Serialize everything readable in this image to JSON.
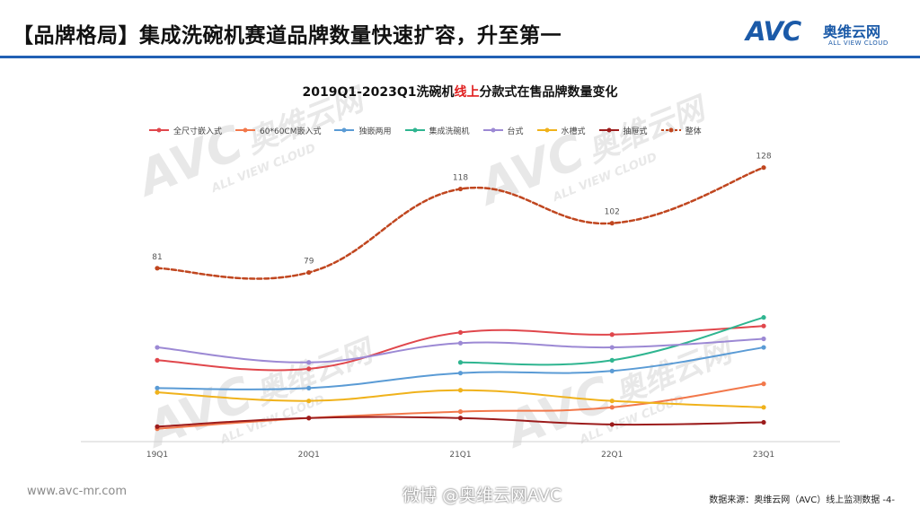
{
  "header": {
    "title": "【品牌格局】集成洗碗机赛道品牌数量快速扩容，升至第一"
  },
  "logo": {
    "mark": "AVC",
    "cn": "奥维云网",
    "en": "ALL VIEW CLOUD"
  },
  "watermark": {
    "mark": "AVC",
    "cn": "奥维云网",
    "en": "ALL VIEW CLOUD"
  },
  "chart_data": {
    "type": "line",
    "title_prefix": "2019Q1-2023Q1洗碗机",
    "title_highlight": "线上",
    "title_suffix": "分款式在售品牌数量变化",
    "title": "2019Q1-2023Q1洗碗机线上分款式在售品牌数量变化",
    "categories": [
      "19Q1",
      "20Q1",
      "21Q1",
      "22Q1",
      "23Q1"
    ],
    "ylim": [
      0,
      135
    ],
    "legend_position": "top",
    "series": [
      {
        "name": "全尺寸嵌入式",
        "color": "#e0474c",
        "dashed": false,
        "values": [
          38,
          34,
          51,
          50,
          54
        ],
        "labels": null
      },
      {
        "name": "60*60CM嵌入式",
        "color": "#f2784b",
        "dashed": false,
        "values": [
          6,
          11,
          14,
          16,
          27
        ],
        "labels": null
      },
      {
        "name": "独嵌两用",
        "color": "#5a9bd5",
        "dashed": false,
        "values": [
          25,
          25,
          32,
          33,
          44
        ],
        "labels": null
      },
      {
        "name": "集成洗碗机",
        "color": "#2fb590",
        "dashed": false,
        "values": [
          null,
          null,
          37,
          38,
          58
        ],
        "labels": null
      },
      {
        "name": "台式",
        "color": "#9c89d4",
        "dashed": false,
        "values": [
          44,
          37,
          46,
          44,
          48
        ],
        "labels": null
      },
      {
        "name": "水槽式",
        "color": "#f0b21b",
        "dashed": false,
        "values": [
          23,
          19,
          24,
          19,
          16
        ],
        "labels": null
      },
      {
        "name": "抽屉式",
        "color": "#9c1c1c",
        "dashed": false,
        "values": [
          7,
          11,
          11,
          8,
          9
        ],
        "labels": null
      },
      {
        "name": "整体",
        "color": "#c0461f",
        "dashed": true,
        "values": [
          81,
          79,
          118,
          102,
          128
        ],
        "labels": [
          "81",
          "79",
          "118",
          "102",
          "128"
        ]
      }
    ]
  },
  "footer": {
    "website": "www.avc-mr.com",
    "weibo": "微博 @奥维云网AVC",
    "source": "数据来源：奥维云网（AVC）线上监测数据 -4-"
  }
}
